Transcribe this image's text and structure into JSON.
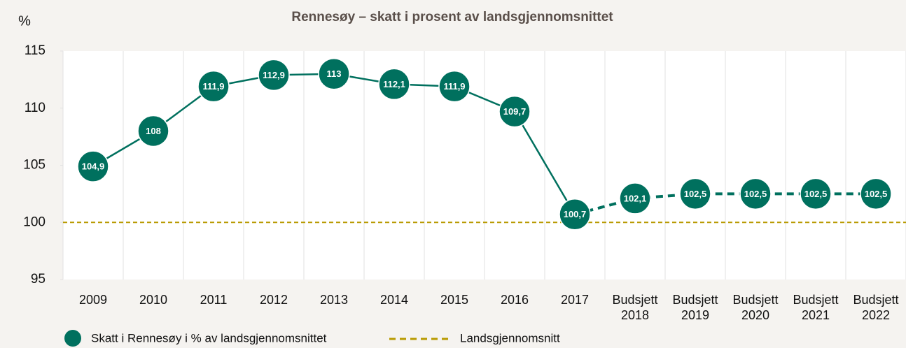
{
  "chart_data": {
    "type": "line",
    "title": "Rennesøy – skatt i prosent av landsgjennomsnittet",
    "y_label": "%",
    "categories": [
      "2009",
      "2010",
      "2011",
      "2012",
      "2013",
      "2014",
      "2015",
      "2016",
      "2017",
      "Budsjett 2018",
      "Budsjett 2019",
      "Budsjett 2020",
      "Budsjett 2021",
      "Budsjett 2022"
    ],
    "series": [
      {
        "name": "Skatt i Rennesøy i % av landsgjennomsnittet",
        "color": "#00705e",
        "values": [
          104.9,
          108,
          111.9,
          112.9,
          113,
          112.1,
          111.9,
          109.7,
          100.7,
          102.1,
          102.5,
          102.5,
          102.5,
          102.5
        ],
        "value_labels": [
          "104,9",
          "108",
          "111,9",
          "112,9",
          "113",
          "112,1",
          "111,9",
          "109,7",
          "100,7",
          "102,1",
          "102,5",
          "102,5",
          "102,5",
          "102,5"
        ],
        "dashed_from_index": 8
      }
    ],
    "reference_line": {
      "name": "Landsgjennomsnitt",
      "value": 100,
      "color": "#b89a00"
    },
    "ylim": [
      95,
      115
    ],
    "yticks": [
      95,
      100,
      105,
      110,
      115
    ],
    "grid": true
  }
}
